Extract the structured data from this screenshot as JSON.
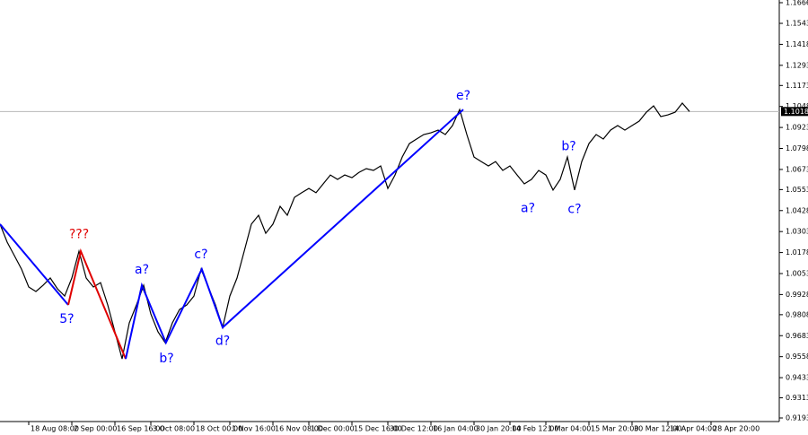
{
  "chart_data": {
    "type": "line",
    "x": [
      0,
      1,
      2,
      3,
      4,
      5,
      6,
      7,
      8,
      9,
      10,
      11,
      12,
      13,
      14,
      15,
      16,
      17,
      18,
      19,
      20,
      21,
      22,
      23,
      24,
      25,
      26,
      27,
      28,
      29,
      30,
      31,
      32,
      33,
      34,
      35,
      36,
      37,
      38,
      39,
      40,
      41,
      42,
      43,
      44,
      45,
      46,
      47,
      48,
      49,
      50,
      51,
      52,
      53,
      54,
      55,
      56,
      57,
      58,
      59,
      60,
      61,
      62,
      63,
      64,
      65,
      66,
      67,
      68,
      69,
      70,
      71,
      72,
      73,
      74,
      75,
      76,
      77,
      78,
      79,
      80,
      81,
      82,
      83,
      84,
      85,
      86,
      87,
      88,
      89,
      90,
      91,
      92,
      93,
      94,
      95,
      96
    ],
    "series": [
      {
        "color": "#000000",
        "values": [
          1.0347,
          1.024,
          1.016,
          1.0079,
          0.9973,
          0.9946,
          0.9983,
          1.0026,
          0.9962,
          0.9919,
          1.0026,
          1.0186,
          1.0026,
          0.9973,
          0.9999,
          0.9866,
          0.9706,
          0.9545,
          0.9759,
          0.9866,
          0.9983,
          0.9812,
          0.9706,
          0.9641,
          0.9759,
          0.9839,
          0.9866,
          0.9919,
          1.0079,
          0.9973,
          0.9866,
          0.9732,
          0.9919,
          1.0026,
          1.0186,
          1.0347,
          1.04,
          1.0293,
          1.0347,
          1.0453,
          1.04,
          1.0507,
          1.0534,
          1.056,
          1.0534,
          1.0587,
          1.064,
          1.0614,
          1.064,
          1.0624,
          1.0656,
          1.0678,
          1.0667,
          1.0694,
          1.056,
          1.064,
          1.0747,
          1.0827,
          1.0854,
          1.0881,
          1.0891,
          1.0907,
          1.0881,
          1.0934,
          1.103,
          1.0881,
          1.0747,
          1.072,
          1.0694,
          1.072,
          1.0667,
          1.0694,
          1.064,
          1.0587,
          1.0614,
          1.0667,
          1.064,
          1.055,
          1.0614,
          1.0747,
          1.055,
          1.072,
          1.0827,
          1.0881,
          1.0854,
          1.0907,
          1.0934,
          1.0907,
          1.0934,
          1.0961,
          1.1014,
          1.1052,
          1.0988,
          1.0998,
          1.1014,
          1.1068,
          1.1018
        ]
      }
    ],
    "last_price": 1.1018,
    "xlim": [
      0,
      108
    ],
    "xticks": [
      {
        "value": 4,
        "label": "18 Aug 08:00"
      },
      {
        "value": 10,
        "label": "2 Sep 00:00"
      },
      {
        "value": 16,
        "label": "16 Sep 16:00"
      },
      {
        "value": 21,
        "label": "3 Oct 08:00"
      },
      {
        "value": 27,
        "label": "18 Oct 00:00"
      },
      {
        "value": 32,
        "label": "1 Nov 16:00"
      },
      {
        "value": 38,
        "label": "16 Nov 08:00"
      },
      {
        "value": 43,
        "label": "1 Dec 00:00"
      },
      {
        "value": 49,
        "label": "15 Dec 16:00"
      },
      {
        "value": 54,
        "label": "30 Dec 12:00"
      },
      {
        "value": 60,
        "label": "16 Jan 04:00"
      },
      {
        "value": 66,
        "label": "30 Jan 20:00"
      },
      {
        "value": 71,
        "label": "14 Feb 12:00"
      },
      {
        "value": 76,
        "label": "1 Mar 04:00"
      },
      {
        "value": 82,
        "label": "15 Mar 20:00"
      },
      {
        "value": 88,
        "label": "30 Mar 12:00"
      },
      {
        "value": 93,
        "label": "14 Apr 04:00"
      },
      {
        "value": 99,
        "label": "28 Apr 20:00"
      }
    ],
    "ylim": [
      0.9193,
      1.1666
    ],
    "yticks": [
      1.1666,
      1.1543,
      1.1418,
      1.1293,
      1.1173,
      1.1048,
      1.0923,
      1.0798,
      1.0673,
      1.0553,
      1.0428,
      1.0303,
      1.0178,
      1.0053,
      0.9928,
      0.9808,
      0.9683,
      0.9558,
      0.9433,
      0.9313,
      0.9193
    ],
    "waves": [
      {
        "color": "#0000ff",
        "x": [
          0,
          9.5
        ],
        "values": [
          1.0347,
          0.9866
        ]
      },
      {
        "color": "#e00000",
        "x": [
          9.5,
          11.25,
          17.5
        ],
        "values": [
          0.9866,
          1.0186,
          0.9545
        ]
      },
      {
        "color": "#0000ff",
        "x": [
          17.5,
          19.75,
          23.1,
          28.1,
          31,
          64.5
        ],
        "values": [
          0.9545,
          0.9983,
          0.9641,
          1.0079,
          0.9732,
          1.103
        ]
      }
    ],
    "wave_labels": [
      {
        "text": "5?",
        "color": "#0000ff",
        "x": 9.3,
        "y": 0.978
      },
      {
        "text": "???",
        "color": "#e00000",
        "x": 11,
        "y": 1.0285
      },
      {
        "text": "a?",
        "color": "#0000ff",
        "x": 19.75,
        "y": 1.0075
      },
      {
        "text": "b?",
        "color": "#0000ff",
        "x": 23.2,
        "y": 0.9545
      },
      {
        "text": "c?",
        "color": "#0000ff",
        "x": 28,
        "y": 1.0165
      },
      {
        "text": "d?",
        "color": "#0000ff",
        "x": 31,
        "y": 0.965
      },
      {
        "text": "e?",
        "color": "#0000ff",
        "x": 64.5,
        "y": 1.111
      },
      {
        "text": "a?",
        "color": "#0000ff",
        "x": 73.5,
        "y": 1.044
      },
      {
        "text": "b?",
        "color": "#0000ff",
        "x": 79.2,
        "y": 1.081
      },
      {
        "text": "c?",
        "color": "#0000ff",
        "x": 80,
        "y": 1.0435
      }
    ]
  }
}
